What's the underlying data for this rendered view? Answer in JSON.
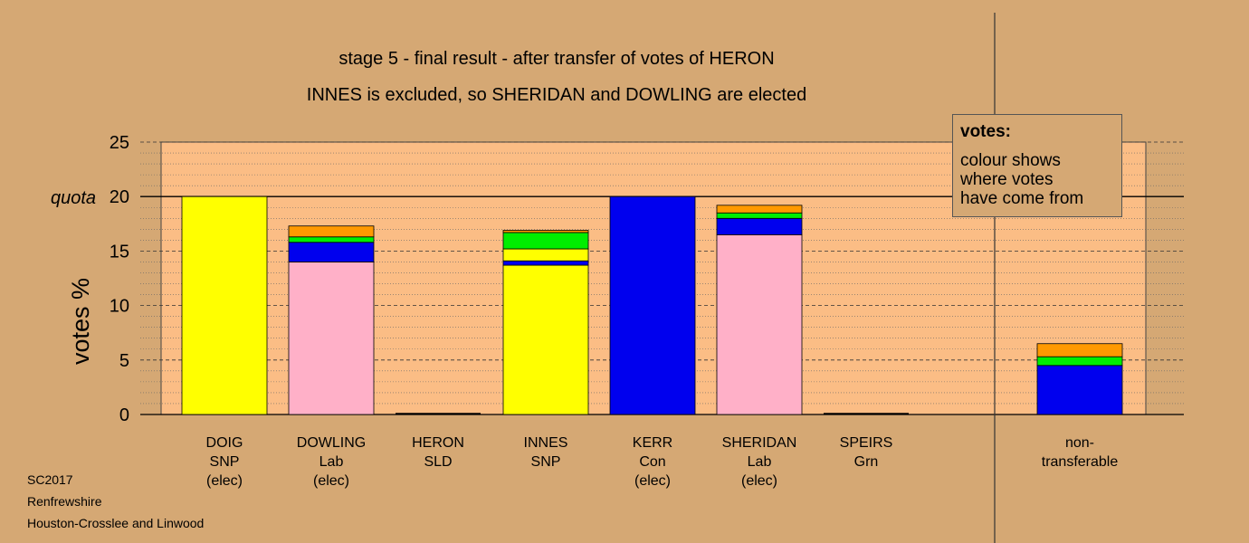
{
  "titles": {
    "line1": "stage 5 - final result - after transfer of votes of HERON",
    "line2": "INNES is excluded, so SHERIDAN and DOWLING are elected"
  },
  "legend": {
    "title": "votes:",
    "lines": [
      "colour shows",
      "where votes",
      "have come from"
    ]
  },
  "footer": {
    "line1": "SC2017",
    "line2": "Renfrewshire",
    "line3": "Houston-Crosslee and Linwood"
  },
  "colors": {
    "background": "#d5a874",
    "plot_area": "#fbbd85",
    "SNP": "#ffff00",
    "Lab": "#ffb0c8",
    "Con": "#0000ee",
    "Grn": "#00ee00",
    "SLD": "#ff9900"
  },
  "chart_data": {
    "type": "bar",
    "stacked": true,
    "ylabel": "votes %",
    "ylim": [
      0,
      25
    ],
    "yticks": [
      0,
      5,
      10,
      15,
      20,
      25
    ],
    "quota": 20,
    "quota_label": "quota",
    "grid": true,
    "categories": [
      {
        "name": "DOIG",
        "party": "SNP",
        "note": "(elec)"
      },
      {
        "name": "DOWLING",
        "party": "Lab",
        "note": "(elec)"
      },
      {
        "name": "HERON",
        "party": "SLD",
        "note": ""
      },
      {
        "name": "INNES",
        "party": "SNP",
        "note": ""
      },
      {
        "name": "KERR",
        "party": "Con",
        "note": "(elec)"
      },
      {
        "name": "SHERIDAN",
        "party": "Lab",
        "note": "(elec)"
      },
      {
        "name": "SPEIRS",
        "party": "Grn",
        "note": ""
      },
      {
        "name": "non-",
        "party": "transferable",
        "note": ""
      }
    ],
    "stacks": [
      [
        {
          "source": "SNP",
          "value": 20.0
        }
      ],
      [
        {
          "source": "Lab",
          "value": 14.0
        },
        {
          "source": "Con",
          "value": 1.8
        },
        {
          "source": "Grn",
          "value": 0.5
        },
        {
          "source": "SLD",
          "value": 1.0
        }
      ],
      [],
      [
        {
          "source": "SNP",
          "value": 13.7
        },
        {
          "source": "Con",
          "value": 0.4
        },
        {
          "source": "SNP",
          "value": 1.1
        },
        {
          "source": "Grn",
          "value": 1.5
        },
        {
          "source": "SLD",
          "value": 0.2
        }
      ],
      [
        {
          "source": "Con",
          "value": 20.0
        }
      ],
      [
        {
          "source": "Lab",
          "value": 16.5
        },
        {
          "source": "Con",
          "value": 1.5
        },
        {
          "source": "Grn",
          "value": 0.5
        },
        {
          "source": "SLD",
          "value": 0.7
        }
      ],
      [],
      [
        {
          "source": "Con",
          "value": 4.5
        },
        {
          "source": "Grn",
          "value": 0.8
        },
        {
          "source": "SLD",
          "value": 1.2
        }
      ]
    ]
  }
}
